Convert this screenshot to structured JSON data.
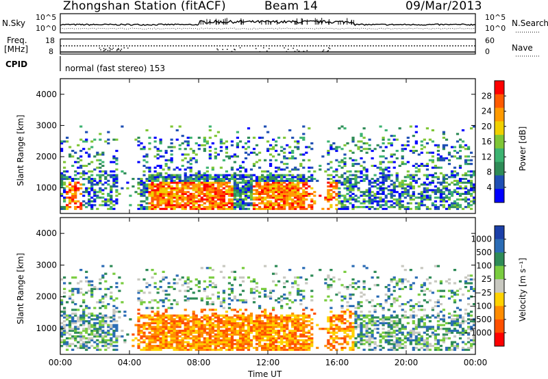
{
  "header": {
    "station": "Zhongshan Station (fitACF)",
    "beam": "Beam 14",
    "date": "09/Mar/2013"
  },
  "status_panels": {
    "noise": {
      "left_label": "N.Sky",
      "right_label": "N.Search",
      "left_ticks": [
        "10^5",
        "10^0"
      ],
      "right_ticks": [
        "10^5",
        "10^0"
      ]
    },
    "freq": {
      "left_label_line1": "Freq.",
      "left_label_line2": "[MHz]",
      "right_label": "Nave",
      "left_ticks": [
        "18",
        "8"
      ],
      "right_ticks": [
        "60",
        "0"
      ]
    },
    "cpid": {
      "label": "CPID",
      "mode_text": "normal (fast stereo) 153"
    }
  },
  "colors": {
    "power_scale": [
      "#0000ff",
      "#1f4fb4",
      "#2e8b57",
      "#3cb371",
      "#7fc636",
      "#f0d000",
      "#ff9a00",
      "#ff5a00",
      "#ff0000"
    ],
    "velocity_scale": [
      "#1b3fa8",
      "#2b6cb5",
      "#2e8b57",
      "#7acc40",
      "#c8c8c0",
      "#ffd200",
      "#ff8c00",
      "#ff5000",
      "#ff0000"
    ]
  },
  "chart_data": [
    {
      "type": "heatmap",
      "panel": "power",
      "title": "",
      "ylabel": "Slant Range [km]",
      "xlabel": "",
      "xlim": [
        "00:00",
        "00:00"
      ],
      "ylim": [
        180,
        4500
      ],
      "y_ticks": [
        "1000",
        "2000",
        "3000",
        "4000"
      ],
      "x_ticks": [
        "00:00",
        "04:00",
        "08:00",
        "12:00",
        "16:00",
        "20:00",
        "00:00"
      ],
      "colorbar": {
        "label": "Power [dB]",
        "range": [
          0,
          32
        ],
        "ticks": [
          "28",
          "24",
          "20",
          "16",
          "12",
          "8",
          "4"
        ]
      }
    },
    {
      "type": "heatmap",
      "panel": "velocity",
      "title": "",
      "ylabel": "Slant Range [km]",
      "xlabel": "Time UT",
      "xlim": [
        "00:00",
        "00:00"
      ],
      "ylim": [
        180,
        4500
      ],
      "y_ticks": [
        "1000",
        "2000",
        "3000",
        "4000"
      ],
      "x_ticks": [
        "00:00",
        "04:00",
        "08:00",
        "12:00",
        "16:00",
        "20:00",
        "00:00"
      ],
      "colorbar": {
        "label": "Velocity [m s⁻¹]",
        "ticks": [
          "1000",
          "500",
          "100",
          "25",
          "−25",
          "−100",
          "−500",
          "−1000"
        ]
      }
    }
  ]
}
